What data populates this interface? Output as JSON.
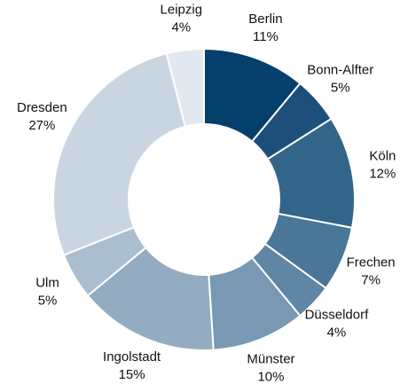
{
  "chart_data": {
    "type": "donut",
    "categories": [
      "Berlin",
      "Bonn-Alfter",
      "Köln",
      "Frechen",
      "Düsseldorf",
      "Münster",
      "Ingolstadt",
      "Ulm",
      "Dresden",
      "Leipzig"
    ],
    "values": [
      11,
      5,
      12,
      7,
      4,
      10,
      15,
      5,
      27,
      4
    ],
    "value_labels": [
      "11%",
      "5%",
      "12%",
      "7%",
      "4%",
      "10%",
      "15%",
      "5%",
      "27%",
      "4%"
    ],
    "colors": [
      "#053f6b",
      "#1e4f7b",
      "#33658b",
      "#4a7698",
      "#5f86a5",
      "#7898b3",
      "#93acc2",
      "#abbecf",
      "#c9d6e1",
      "#e2e8ef"
    ]
  }
}
